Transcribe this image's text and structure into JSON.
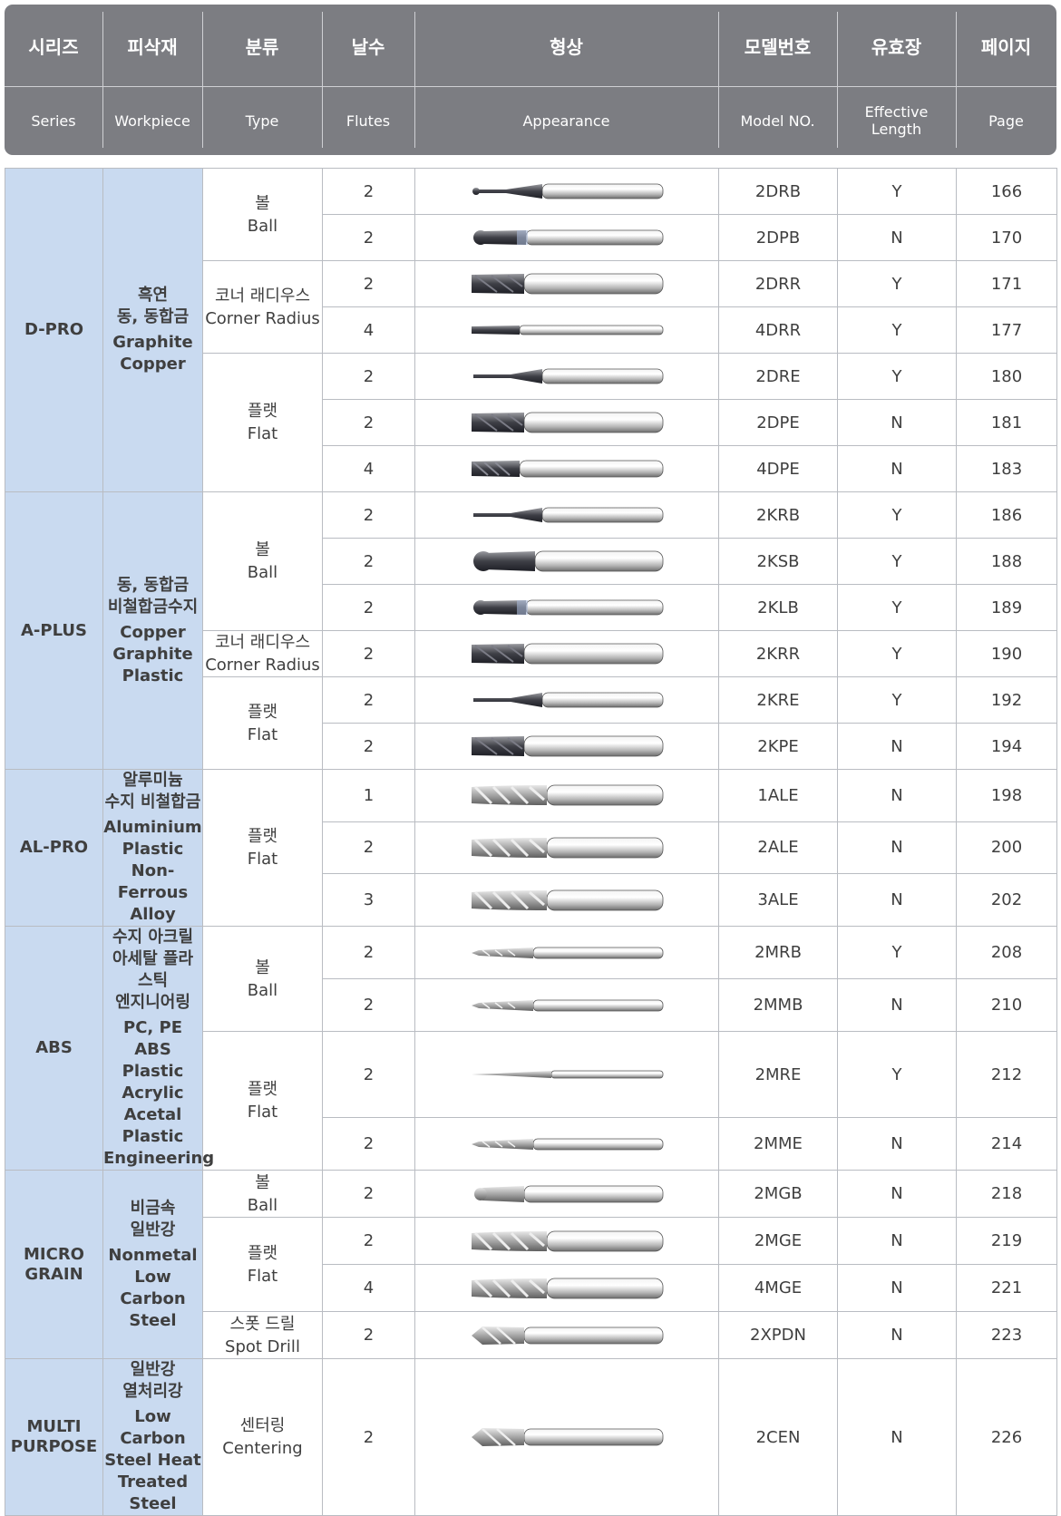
{
  "header": {
    "columns": [
      {
        "ko": "시리즈",
        "en": "Series"
      },
      {
        "ko": "피삭재",
        "en": "Workpiece"
      },
      {
        "ko": "분류",
        "en": "Type"
      },
      {
        "ko": "날수",
        "en": "Flutes"
      },
      {
        "ko": "형상",
        "en": "Appearance"
      },
      {
        "ko": "모델번호",
        "en": "Model NO."
      },
      {
        "ko": "유효장",
        "en": "Effective Length"
      },
      {
        "ko": "페이지",
        "en": "Page"
      }
    ]
  },
  "groups": [
    {
      "series": "D-PRO",
      "workpiece_ko": "흑연\n동, 동합금",
      "workpiece_en": "Graphite\nCopper",
      "types": [
        {
          "label": "볼\nBall",
          "rows": [
            {
              "flutes": "2",
              "model": "2DRB",
              "effective": "Y",
              "page": "166",
              "shape": "ball-long"
            },
            {
              "flutes": "2",
              "model": "2DPB",
              "effective": "N",
              "page": "170",
              "shape": "ball-short"
            }
          ]
        },
        {
          "label": "코너 래디우스\nCorner Radius",
          "rows": [
            {
              "flutes": "2",
              "model": "2DRR",
              "effective": "Y",
              "page": "171",
              "shape": "flute-wide"
            },
            {
              "flutes": "4",
              "model": "4DRR",
              "effective": "Y",
              "page": "177",
              "shape": "flute-thin"
            }
          ]
        },
        {
          "label": "플랫\nFlat",
          "rows": [
            {
              "flutes": "2",
              "model": "2DRE",
              "effective": "Y",
              "page": "180",
              "shape": "neck-long"
            },
            {
              "flutes": "2",
              "model": "2DPE",
              "effective": "N",
              "page": "181",
              "shape": "flute-wide"
            },
            {
              "flutes": "4",
              "model": "4DPE",
              "effective": "N",
              "page": "183",
              "shape": "flute-mid"
            }
          ]
        }
      ]
    },
    {
      "series": "A-PLUS",
      "workpiece_ko": "동, 동합금\n비철합금수지",
      "workpiece_en": "Copper\nGraphite\nPlastic",
      "types": [
        {
          "label": "볼\nBall",
          "rows": [
            {
              "flutes": "2",
              "model": "2KRB",
              "effective": "Y",
              "page": "186",
              "shape": "neck-long"
            },
            {
              "flutes": "2",
              "model": "2KSB",
              "effective": "Y",
              "page": "188",
              "shape": "ball-big"
            },
            {
              "flutes": "2",
              "model": "2KLB",
              "effective": "Y",
              "page": "189",
              "shape": "ball-short"
            }
          ]
        },
        {
          "label": "코너 래디우스\nCorner Radius",
          "rows": [
            {
              "flutes": "2",
              "model": "2KRR",
              "effective": "Y",
              "page": "190",
              "shape": "flute-wide"
            }
          ]
        },
        {
          "label": "플랫\nFlat",
          "rows": [
            {
              "flutes": "2",
              "model": "2KRE",
              "effective": "Y",
              "page": "192",
              "shape": "neck-long"
            },
            {
              "flutes": "2",
              "model": "2KPE",
              "effective": "N",
              "page": "194",
              "shape": "flute-wide"
            }
          ]
        }
      ]
    },
    {
      "series": "AL-PRO",
      "workpiece_ko": "알루미늄\n수지 비철합금",
      "workpiece_en": "Aluminium\nPlastic\nNon-Ferrous\nAlloy",
      "types": [
        {
          "label": "플랫\nFlat",
          "rows": [
            {
              "flutes": "1",
              "model": "1ALE",
              "effective": "N",
              "page": "198",
              "shape": "silver-flute"
            },
            {
              "flutes": "2",
              "model": "2ALE",
              "effective": "N",
              "page": "200",
              "shape": "silver-flute"
            },
            {
              "flutes": "3",
              "model": "3ALE",
              "effective": "N",
              "page": "202",
              "shape": "silver-flute"
            }
          ]
        }
      ]
    },
    {
      "series": "ABS",
      "workpiece_ko": "수지 아크릴\n아세탈 플라\n스틱\n엔지니어링",
      "workpiece_en": "PC, PE ABS\nPlastic Acrylic\nAcetal Plastic\nEngineering",
      "types": [
        {
          "label": "볼\nBall",
          "rows": [
            {
              "flutes": "2",
              "model": "2MRB",
              "effective": "Y",
              "page": "208",
              "shape": "silver-thin"
            },
            {
              "flutes": "2",
              "model": "2MMB",
              "effective": "N",
              "page": "210",
              "shape": "silver-thin"
            }
          ]
        },
        {
          "label": "플랫\nFlat",
          "rows": [
            {
              "flutes": "2",
              "model": "2MRE",
              "effective": "Y",
              "page": "212",
              "shape": "needle"
            },
            {
              "flutes": "2",
              "model": "2MME",
              "effective": "N",
              "page": "214",
              "shape": "silver-thin"
            }
          ]
        }
      ]
    },
    {
      "series": "MICRO\nGRAIN",
      "workpiece_ko": "비금속\n일반강",
      "workpiece_en": "Nonmetal\nLow Carbon\nSteel",
      "types": [
        {
          "label": "볼\nBall",
          "rows": [
            {
              "flutes": "2",
              "model": "2MGB",
              "effective": "N",
              "page": "218",
              "shape": "silver-ball"
            }
          ]
        },
        {
          "label": "플랫\nFlat",
          "rows": [
            {
              "flutes": "2",
              "model": "2MGE",
              "effective": "N",
              "page": "219",
              "shape": "silver-flute"
            },
            {
              "flutes": "4",
              "model": "4MGE",
              "effective": "N",
              "page": "221",
              "shape": "silver-flute"
            }
          ]
        },
        {
          "label": "스폿 드릴\nSpot Drill",
          "rows": [
            {
              "flutes": "2",
              "model": "2XPDN",
              "effective": "N",
              "page": "223",
              "shape": "drill"
            }
          ]
        }
      ]
    },
    {
      "series": "MULTI\nPURPOSE",
      "workpiece_ko": "일반강\n열처리강",
      "workpiece_en": "Low Carbon\nSteel Heat\nTreated Steel",
      "types": [
        {
          "label": "센터링\nCentering",
          "rows": [
            {
              "flutes": "2",
              "model": "2CEN",
              "effective": "N",
              "page": "226",
              "shape": "drill"
            }
          ]
        }
      ]
    }
  ]
}
